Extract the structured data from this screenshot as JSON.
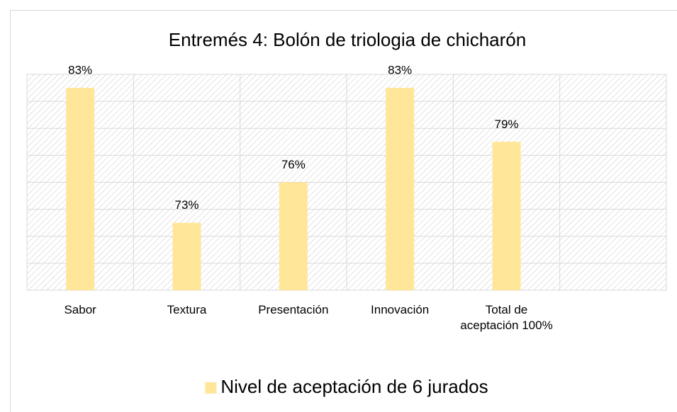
{
  "chart_data": {
    "type": "bar",
    "title": "Entremés 4: Bolón de triologia de chicharón",
    "categories": [
      "Sabor",
      "Textura",
      "Presentación",
      "Innovación",
      "Total de aceptación 100%",
      null
    ],
    "series": [
      {
        "name": "Nivel de aceptación de 6 jurados",
        "color": "#FFE699",
        "values": [
          83,
          73,
          76,
          83,
          79,
          null
        ],
        "value_labels": [
          "83%",
          "73%",
          "76%",
          "83%",
          "79%",
          null
        ]
      }
    ],
    "ylim": [
      68,
      84
    ],
    "yticks": [
      68,
      70,
      72,
      74,
      76,
      78,
      80,
      82,
      84
    ],
    "show_ytick_labels": false,
    "grid": true,
    "legend": "bottom"
  }
}
